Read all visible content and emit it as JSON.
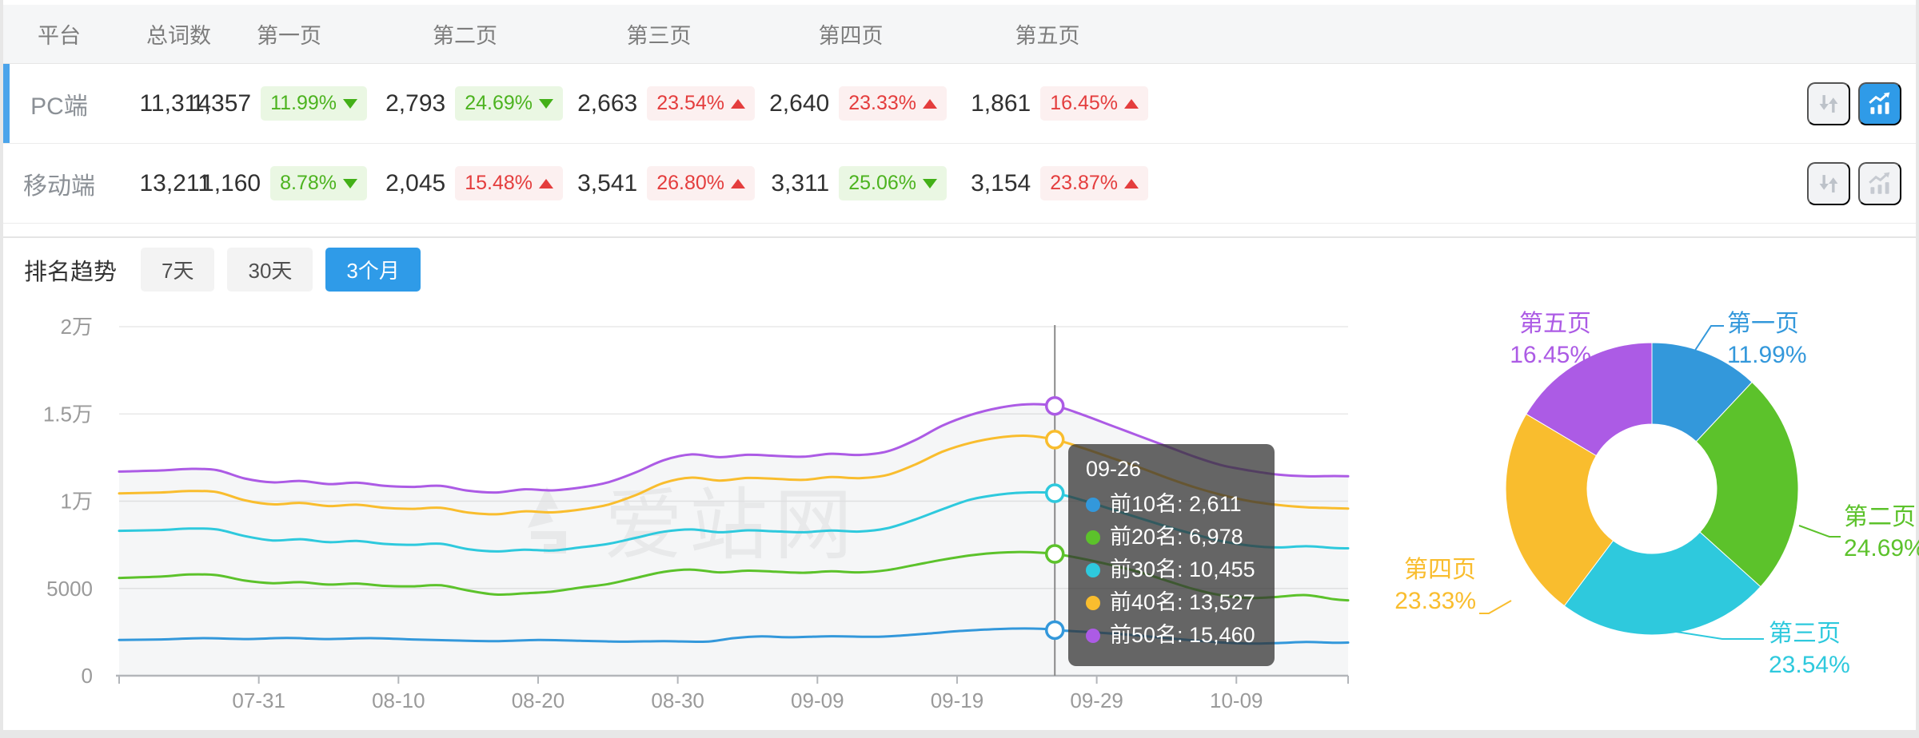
{
  "table": {
    "columns": [
      "平台",
      "总词数",
      "第一页",
      "第二页",
      "第三页",
      "第四页",
      "第五页"
    ],
    "rows": [
      {
        "platform": "PC端",
        "total": "11,314",
        "active": true,
        "pages": [
          {
            "value": "1,357",
            "pct": "11.99%",
            "dir": "down",
            "tone": "good"
          },
          {
            "value": "2,793",
            "pct": "24.69%",
            "dir": "down",
            "tone": "good"
          },
          {
            "value": "2,663",
            "pct": "23.54%",
            "dir": "up",
            "tone": "bad"
          },
          {
            "value": "2,640",
            "pct": "23.33%",
            "dir": "up",
            "tone": "bad"
          },
          {
            "value": "1,861",
            "pct": "16.45%",
            "dir": "up",
            "tone": "bad"
          }
        ],
        "trend_button_active": true
      },
      {
        "platform": "移动端",
        "total": "13,211",
        "active": false,
        "pages": [
          {
            "value": "1,160",
            "pct": "8.78%",
            "dir": "down",
            "tone": "good"
          },
          {
            "value": "2,045",
            "pct": "15.48%",
            "dir": "up",
            "tone": "bad"
          },
          {
            "value": "3,541",
            "pct": "26.80%",
            "dir": "up",
            "tone": "bad"
          },
          {
            "value": "3,311",
            "pct": "25.06%",
            "dir": "down",
            "tone": "good"
          },
          {
            "value": "3,154",
            "pct": "23.87%",
            "dir": "up",
            "tone": "bad"
          }
        ],
        "trend_button_active": false
      }
    ]
  },
  "trend": {
    "title": "排名趋势",
    "tabs": [
      {
        "label": "7天",
        "active": false
      },
      {
        "label": "30天",
        "active": false
      },
      {
        "label": "3个月",
        "active": true
      }
    ],
    "watermark": "爱站网"
  },
  "colors": {
    "accent_blue": "#2f9be8",
    "row_accent": "#4ba4eb",
    "good_green": "#4cb31f",
    "bad_red": "#e43d3d",
    "series": [
      "#3398db",
      "#5cc22b",
      "#2ec9dd",
      "#f9bd2e",
      "#ac5be5"
    ]
  },
  "chart_data": [
    {
      "type": "line",
      "title": "排名趋势 (3个月)",
      "x_axis": {
        "start_day": 0,
        "end_day": 88,
        "ticks": [
          {
            "day": 10,
            "label": "07-31"
          },
          {
            "day": 20,
            "label": "08-10"
          },
          {
            "day": 30,
            "label": "08-20"
          },
          {
            "day": 40,
            "label": "08-30"
          },
          {
            "day": 50,
            "label": "09-09"
          },
          {
            "day": 60,
            "label": "09-19"
          },
          {
            "day": 70,
            "label": "09-29"
          },
          {
            "day": 80,
            "label": "10-09"
          }
        ]
      },
      "y_axis": {
        "min": 0,
        "max": 20000,
        "ticks": [
          {
            "value": 20000,
            "label": "2万"
          },
          {
            "value": 15000,
            "label": "1.5万"
          },
          {
            "value": 10000,
            "label": "1万"
          },
          {
            "value": 5000,
            "label": "5000"
          },
          {
            "value": 0,
            "label": "0"
          }
        ]
      },
      "grid": true,
      "series": [
        {
          "name": "前10名",
          "color": "#3398db",
          "points": [
            [
              0,
              2050
            ],
            [
              3,
              2080
            ],
            [
              6,
              2150
            ],
            [
              9,
              2100
            ],
            [
              12,
              2160
            ],
            [
              15,
              2100
            ],
            [
              18,
              2150
            ],
            [
              21,
              2080
            ],
            [
              24,
              2020
            ],
            [
              27,
              1980
            ],
            [
              30,
              2050
            ],
            [
              33,
              2000
            ],
            [
              36,
              1950
            ],
            [
              39,
              1980
            ],
            [
              42,
              1950
            ],
            [
              44,
              2150
            ],
            [
              46,
              2250
            ],
            [
              48,
              2200
            ],
            [
              51,
              2260
            ],
            [
              54,
              2230
            ],
            [
              56,
              2300
            ],
            [
              58,
              2420
            ],
            [
              60,
              2550
            ],
            [
              62,
              2640
            ],
            [
              64,
              2700
            ],
            [
              66,
              2690
            ],
            [
              67,
              2611
            ],
            [
              69,
              2520
            ],
            [
              71,
              2420
            ],
            [
              73,
              2300
            ],
            [
              75,
              2150
            ],
            [
              77,
              2020
            ],
            [
              79,
              1900
            ],
            [
              81,
              1840
            ],
            [
              83,
              1870
            ],
            [
              85,
              1930
            ],
            [
              87,
              1890
            ],
            [
              88,
              1900
            ]
          ]
        },
        {
          "name": "前20名",
          "color": "#5cc22b",
          "points": [
            [
              0,
              5600
            ],
            [
              3,
              5680
            ],
            [
              5,
              5800
            ],
            [
              7,
              5760
            ],
            [
              9,
              5450
            ],
            [
              11,
              5300
            ],
            [
              13,
              5360
            ],
            [
              15,
              5220
            ],
            [
              17,
              5280
            ],
            [
              19,
              5150
            ],
            [
              21,
              5120
            ],
            [
              23,
              5180
            ],
            [
              25,
              4880
            ],
            [
              27,
              4650
            ],
            [
              29,
              4720
            ],
            [
              31,
              4820
            ],
            [
              33,
              5050
            ],
            [
              35,
              5250
            ],
            [
              37,
              5600
            ],
            [
              39,
              5950
            ],
            [
              41,
              6080
            ],
            [
              43,
              5920
            ],
            [
              45,
              6020
            ],
            [
              47,
              5960
            ],
            [
              49,
              5900
            ],
            [
              51,
              5980
            ],
            [
              53,
              5920
            ],
            [
              55,
              6050
            ],
            [
              57,
              6350
            ],
            [
              59,
              6650
            ],
            [
              61,
              6900
            ],
            [
              63,
              7050
            ],
            [
              65,
              7080
            ],
            [
              67,
              6978
            ],
            [
              69,
              6700
            ],
            [
              71,
              6350
            ],
            [
              73,
              5950
            ],
            [
              75,
              5450
            ],
            [
              77,
              4950
            ],
            [
              79,
              4600
            ],
            [
              81,
              4450
            ],
            [
              83,
              4520
            ],
            [
              85,
              4620
            ],
            [
              87,
              4380
            ],
            [
              88,
              4320
            ]
          ]
        },
        {
          "name": "前30名",
          "color": "#2ec9dd",
          "points": [
            [
              0,
              8300
            ],
            [
              3,
              8350
            ],
            [
              5,
              8430
            ],
            [
              7,
              8380
            ],
            [
              9,
              8000
            ],
            [
              11,
              7750
            ],
            [
              13,
              7820
            ],
            [
              15,
              7650
            ],
            [
              17,
              7720
            ],
            [
              19,
              7550
            ],
            [
              21,
              7500
            ],
            [
              23,
              7560
            ],
            [
              25,
              7250
            ],
            [
              27,
              7120
            ],
            [
              29,
              7220
            ],
            [
              31,
              7170
            ],
            [
              33,
              7350
            ],
            [
              35,
              7550
            ],
            [
              37,
              7900
            ],
            [
              39,
              8250
            ],
            [
              41,
              8380
            ],
            [
              43,
              8220
            ],
            [
              45,
              8330
            ],
            [
              47,
              8270
            ],
            [
              49,
              8220
            ],
            [
              51,
              8320
            ],
            [
              53,
              8260
            ],
            [
              55,
              8450
            ],
            [
              57,
              8950
            ],
            [
              59,
              9550
            ],
            [
              61,
              10100
            ],
            [
              63,
              10380
            ],
            [
              65,
              10500
            ],
            [
              67,
              10455
            ],
            [
              69,
              10050
            ],
            [
              71,
              9550
            ],
            [
              73,
              9050
            ],
            [
              75,
              8550
            ],
            [
              77,
              8100
            ],
            [
              79,
              7700
            ],
            [
              81,
              7450
            ],
            [
              83,
              7350
            ],
            [
              85,
              7420
            ],
            [
              87,
              7320
            ],
            [
              88,
              7300
            ]
          ]
        },
        {
          "name": "前40名",
          "color": "#f9bd2e",
          "points": [
            [
              0,
              10450
            ],
            [
              3,
              10500
            ],
            [
              5,
              10580
            ],
            [
              7,
              10520
            ],
            [
              9,
              10050
            ],
            [
              11,
              9820
            ],
            [
              13,
              9900
            ],
            [
              15,
              9720
            ],
            [
              17,
              9800
            ],
            [
              19,
              9620
            ],
            [
              21,
              9560
            ],
            [
              23,
              9620
            ],
            [
              25,
              9350
            ],
            [
              27,
              9250
            ],
            [
              29,
              9420
            ],
            [
              31,
              9360
            ],
            [
              33,
              9520
            ],
            [
              35,
              9800
            ],
            [
              37,
              10350
            ],
            [
              39,
              11050
            ],
            [
              41,
              11350
            ],
            [
              43,
              11180
            ],
            [
              45,
              11330
            ],
            [
              47,
              11280
            ],
            [
              49,
              11220
            ],
            [
              51,
              11380
            ],
            [
              53,
              11320
            ],
            [
              55,
              11500
            ],
            [
              57,
              12100
            ],
            [
              59,
              12850
            ],
            [
              61,
              13350
            ],
            [
              63,
              13650
            ],
            [
              65,
              13750
            ],
            [
              67,
              13527
            ],
            [
              69,
              13050
            ],
            [
              71,
              12500
            ],
            [
              73,
              11950
            ],
            [
              75,
              11350
            ],
            [
              77,
              10800
            ],
            [
              79,
              10350
            ],
            [
              81,
              10000
            ],
            [
              83,
              9780
            ],
            [
              85,
              9650
            ],
            [
              87,
              9600
            ],
            [
              88,
              9580
            ]
          ]
        },
        {
          "name": "前50名",
          "color": "#ac5be5",
          "points": [
            [
              0,
              11700
            ],
            [
              3,
              11760
            ],
            [
              5,
              11850
            ],
            [
              7,
              11780
            ],
            [
              9,
              11300
            ],
            [
              11,
              11080
            ],
            [
              13,
              11160
            ],
            [
              15,
              10980
            ],
            [
              17,
              11060
            ],
            [
              19,
              10880
            ],
            [
              21,
              10820
            ],
            [
              23,
              10880
            ],
            [
              25,
              10600
            ],
            [
              27,
              10500
            ],
            [
              29,
              10680
            ],
            [
              31,
              10620
            ],
            [
              33,
              10780
            ],
            [
              35,
              11080
            ],
            [
              37,
              11650
            ],
            [
              39,
              12350
            ],
            [
              41,
              12680
            ],
            [
              43,
              12520
            ],
            [
              45,
              12660
            ],
            [
              47,
              12600
            ],
            [
              49,
              12550
            ],
            [
              51,
              12720
            ],
            [
              53,
              12650
            ],
            [
              55,
              12850
            ],
            [
              57,
              13500
            ],
            [
              59,
              14350
            ],
            [
              61,
              14950
            ],
            [
              63,
              15350
            ],
            [
              65,
              15550
            ],
            [
              67,
              15460
            ],
            [
              69,
              14950
            ],
            [
              71,
              14350
            ],
            [
              73,
              13750
            ],
            [
              75,
              13150
            ],
            [
              77,
              12550
            ],
            [
              79,
              12050
            ],
            [
              81,
              11750
            ],
            [
              83,
              11520
            ],
            [
              85,
              11430
            ],
            [
              87,
              11440
            ],
            [
              88,
              11430
            ]
          ]
        }
      ],
      "tooltip": {
        "day": 67,
        "title": "09-26",
        "items": [
          {
            "name": "前10名",
            "value": "2,611"
          },
          {
            "name": "前20名",
            "value": "6,978"
          },
          {
            "name": "前30名",
            "value": "10,455"
          },
          {
            "name": "前40名",
            "value": "13,527"
          },
          {
            "name": "前50名",
            "value": "15,460"
          }
        ]
      }
    },
    {
      "type": "pie",
      "donut": true,
      "inner_radius_ratio": 0.44,
      "slices": [
        {
          "name": "第一页",
          "pct": 11.99,
          "pct_label": "11.99%",
          "color": "#3398db"
        },
        {
          "name": "第二页",
          "pct": 24.69,
          "pct_label": "24.69%",
          "color": "#5cc22b"
        },
        {
          "name": "第三页",
          "pct": 23.54,
          "pct_label": "23.54%",
          "color": "#2ec9dd"
        },
        {
          "name": "第四页",
          "pct": 23.33,
          "pct_label": "23.33%",
          "color": "#f9bd2e"
        },
        {
          "name": "第五页",
          "pct": 16.45,
          "pct_label": "16.45%",
          "color": "#ac5be5"
        }
      ]
    }
  ]
}
